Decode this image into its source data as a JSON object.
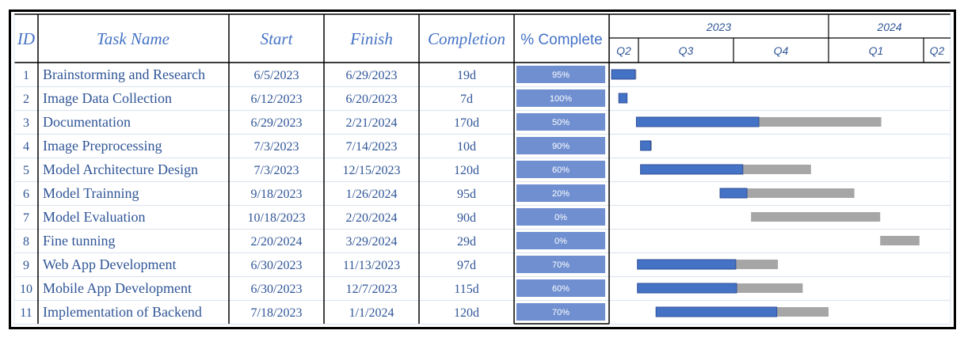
{
  "headers": {
    "id": "ID",
    "name": "Task Name",
    "start": "Start",
    "finish": "Finish",
    "completion": "Completion",
    "percent": "% Complete"
  },
  "timeline": {
    "years": [
      "2023",
      "2024"
    ],
    "quarters": [
      "Q2",
      "Q3",
      "Q4",
      "Q1",
      "Q2"
    ]
  },
  "chart_data": {
    "type": "table",
    "subtype": "gantt",
    "x_axis": "date",
    "x_range": [
      "2023-05-01",
      "2024-05-15"
    ],
    "colors": {
      "completed": "#4472c4",
      "remaining": "#a6a6a6",
      "percent_bar": "#6f8fd0"
    },
    "tasks": [
      {
        "id": "1",
        "name": "Brainstorming and Research",
        "start": "6/5/2023",
        "finish": "6/29/2023",
        "completion": "19d",
        "percent_label": "95%",
        "percent": 95
      },
      {
        "id": "2",
        "name": "Image Data Collection",
        "start": "6/12/2023",
        "finish": "6/20/2023",
        "completion": "7d",
        "percent_label": "100%",
        "percent": 100
      },
      {
        "id": "3",
        "name": "Documentation",
        "start": "6/29/2023",
        "finish": "2/21/2024",
        "completion": "170d",
        "percent_label": "50%",
        "percent": 50
      },
      {
        "id": "4",
        "name": "Image Preprocessing",
        "start": "7/3/2023",
        "finish": "7/14/2023",
        "completion": "10d",
        "percent_label": "90%",
        "percent": 90
      },
      {
        "id": "5",
        "name": "Model Architecture Design",
        "start": "7/3/2023",
        "finish": "12/15/2023",
        "completion": "120d",
        "percent_label": "60%",
        "percent": 60
      },
      {
        "id": "6",
        "name": "Model Trainning",
        "start": "9/18/2023",
        "finish": "1/26/2024",
        "completion": "95d",
        "percent_label": "20%",
        "percent": 20
      },
      {
        "id": "7",
        "name": "Model Evaluation",
        "start": "10/18/2023",
        "finish": "2/20/2024",
        "completion": "90d",
        "percent_label": "0%",
        "percent": 0
      },
      {
        "id": "8",
        "name": "Fine tunning",
        "start": "2/20/2024",
        "finish": "3/29/2024",
        "completion": "29d",
        "percent_label": "0%",
        "percent": 0
      },
      {
        "id": "9",
        "name": "Web App Development",
        "start": "6/30/2023",
        "finish": "11/13/2023",
        "completion": "97d",
        "percent_label": "70%",
        "percent": 70
      },
      {
        "id": "10",
        "name": "Mobile App Development",
        "start": "6/30/2023",
        "finish": "12/7/2023",
        "completion": "115d",
        "percent_label": "60%",
        "percent": 60
      },
      {
        "id": "11",
        "name": "Implementation of Backend",
        "start": "7/18/2023",
        "finish": "1/1/2024",
        "completion": "120d",
        "percent_label": "70%",
        "percent": 70
      }
    ]
  }
}
